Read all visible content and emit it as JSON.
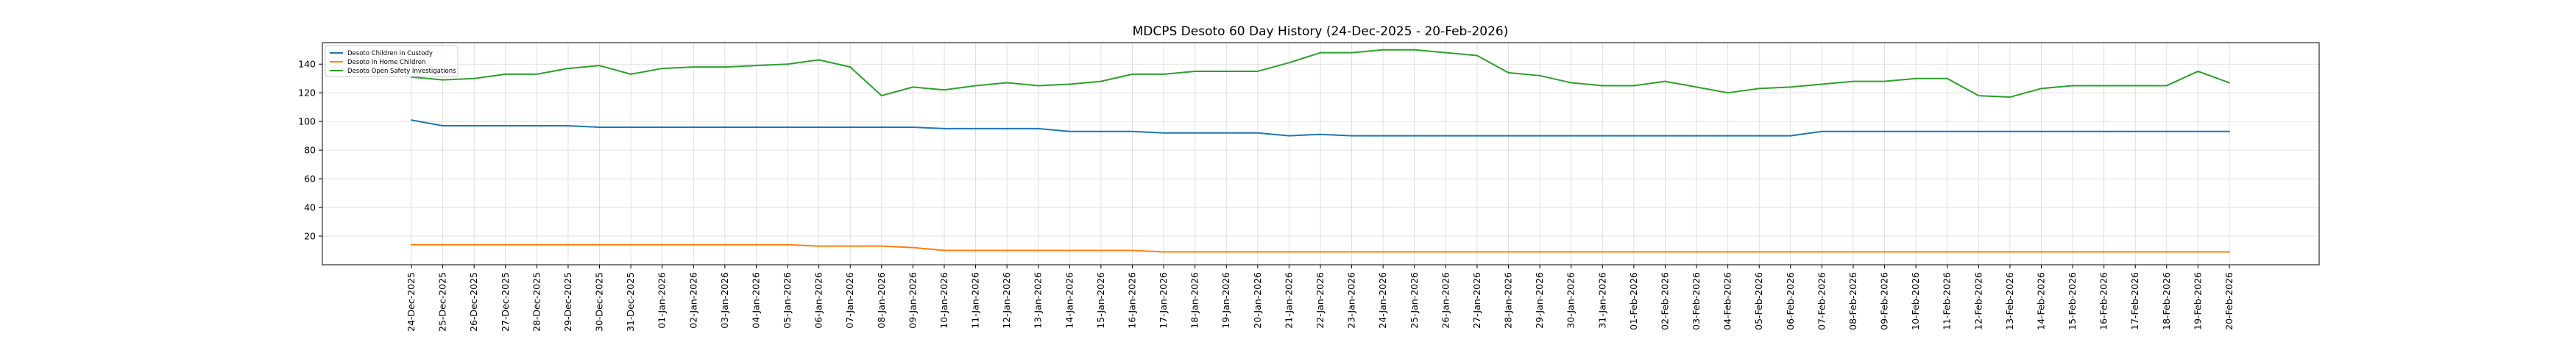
{
  "chart_data": {
    "type": "line",
    "title": "MDCPS Desoto 60 Day History (24-Dec-2025 - 20-Feb-2026)",
    "xlabel": "",
    "ylabel": "",
    "ylim": [
      0,
      155
    ],
    "yticks": [
      20,
      40,
      60,
      80,
      100,
      120,
      140
    ],
    "grid": true,
    "legend_position": "top-left",
    "categories": [
      "24-Dec-2025",
      "25-Dec-2025",
      "26-Dec-2025",
      "27-Dec-2025",
      "28-Dec-2025",
      "29-Dec-2025",
      "30-Dec-2025",
      "31-Dec-2025",
      "01-Jan-2026",
      "02-Jan-2026",
      "03-Jan-2026",
      "04-Jan-2026",
      "05-Jan-2026",
      "06-Jan-2026",
      "07-Jan-2026",
      "08-Jan-2026",
      "09-Jan-2026",
      "10-Jan-2026",
      "11-Jan-2026",
      "12-Jan-2026",
      "13-Jan-2026",
      "14-Jan-2026",
      "15-Jan-2026",
      "16-Jan-2026",
      "17-Jan-2026",
      "18-Jan-2026",
      "19-Jan-2026",
      "20-Jan-2026",
      "21-Jan-2026",
      "22-Jan-2026",
      "23-Jan-2026",
      "24-Jan-2026",
      "25-Jan-2026",
      "26-Jan-2026",
      "27-Jan-2026",
      "28-Jan-2026",
      "29-Jan-2026",
      "30-Jan-2026",
      "31-Jan-2026",
      "01-Feb-2026",
      "02-Feb-2026",
      "03-Feb-2026",
      "04-Feb-2026",
      "05-Feb-2026",
      "06-Feb-2026",
      "07-Feb-2026",
      "08-Feb-2026",
      "09-Feb-2026",
      "10-Feb-2026",
      "11-Feb-2026",
      "12-Feb-2026",
      "13-Feb-2026",
      "14-Feb-2026",
      "15-Feb-2026",
      "16-Feb-2026",
      "17-Feb-2026",
      "18-Feb-2026",
      "19-Feb-2026",
      "20-Feb-2026"
    ],
    "series": [
      {
        "name": "Desoto Children in Custody",
        "color": "#1f77b4",
        "values": [
          101,
          97,
          97,
          97,
          97,
          97,
          96,
          96,
          96,
          96,
          96,
          96,
          96,
          96,
          96,
          96,
          96,
          95,
          95,
          95,
          95,
          93,
          93,
          93,
          92,
          92,
          92,
          92,
          90,
          91,
          90,
          90,
          90,
          90,
          90,
          90,
          90,
          90,
          90,
          90,
          90,
          90,
          90,
          90,
          90,
          93,
          93,
          93,
          93,
          93,
          93,
          93,
          93,
          93,
          93,
          93,
          93,
          93,
          93
        ]
      },
      {
        "name": "Desoto In Home Children",
        "color": "#ff7f0e",
        "values": [
          14,
          14,
          14,
          14,
          14,
          14,
          14,
          14,
          14,
          14,
          14,
          14,
          14,
          13,
          13,
          13,
          12,
          10,
          10,
          10,
          10,
          10,
          10,
          10,
          9,
          9,
          9,
          9,
          9,
          9,
          9,
          9,
          9,
          9,
          9,
          9,
          9,
          9,
          9,
          9,
          9,
          9,
          9,
          9,
          9,
          9,
          9,
          9,
          9,
          9,
          9,
          9,
          9,
          9,
          9,
          9,
          9,
          9,
          9
        ]
      },
      {
        "name": "Desoto Open Safety Investigations",
        "color": "#2ca02c",
        "values": [
          131,
          129,
          130,
          133,
          133,
          137,
          139,
          133,
          137,
          138,
          138,
          139,
          140,
          143,
          138,
          118,
          124,
          122,
          125,
          127,
          125,
          126,
          128,
          133,
          133,
          135,
          135,
          135,
          141,
          148,
          148,
          150,
          150,
          148,
          146,
          134,
          132,
          127,
          125,
          125,
          128,
          124,
          120,
          123,
          124,
          126,
          128,
          128,
          130,
          130,
          118,
          117,
          123,
          125,
          125,
          125,
          125,
          135,
          127
        ]
      }
    ]
  }
}
